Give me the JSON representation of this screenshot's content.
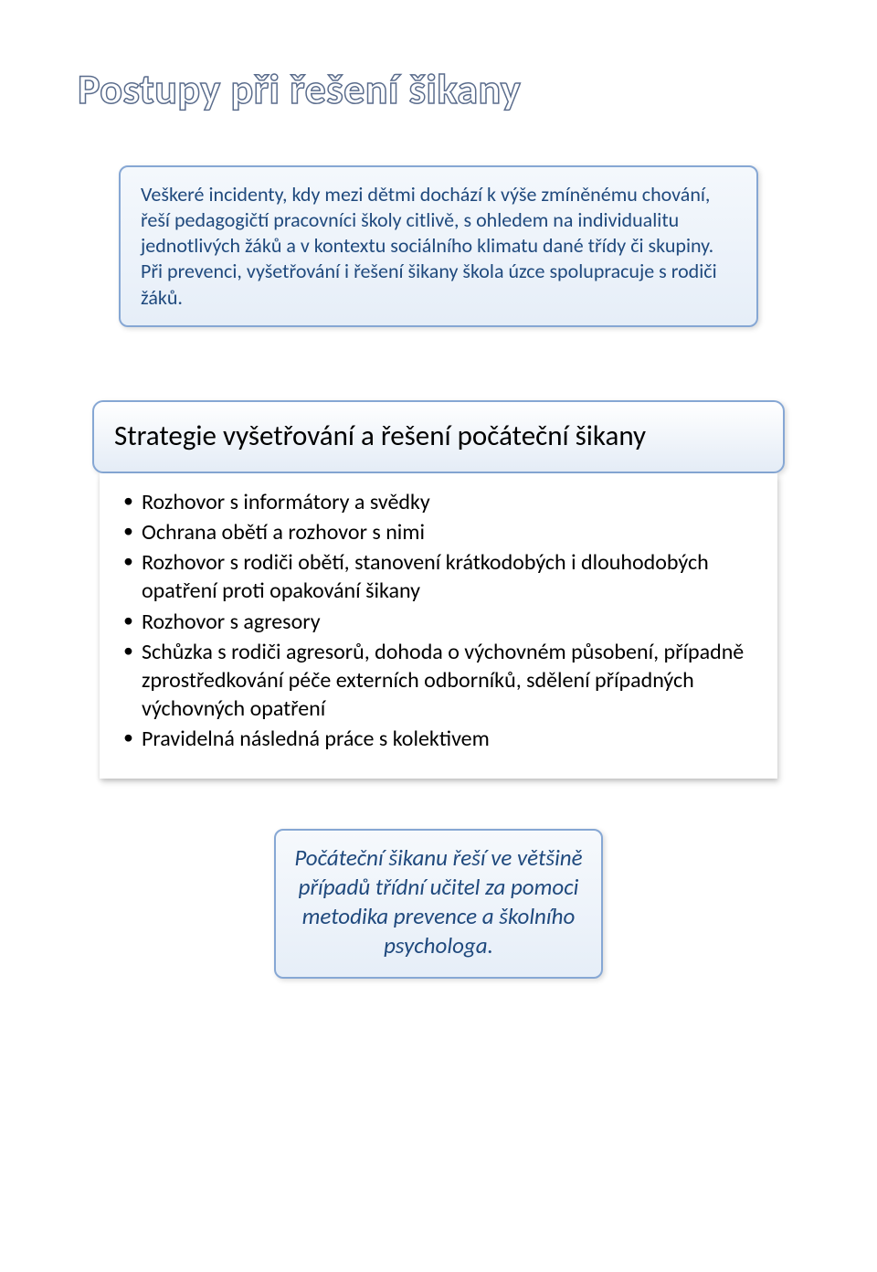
{
  "title": "Postupy při řešení šikany",
  "intro": {
    "paragraph1": "Veškeré incidenty, kdy mezi dětmi dochází k výše zmíněnému chování, řeší pedagogičtí pracovníci školy citlivě, s ohledem na individualitu jednotlivých žáků a v kontextu sociálního klimatu dané třídy či skupiny.",
    "paragraph2": "Při prevenci, vyšetřování i řešení šikany škola úzce spolupracuje s rodiči žáků."
  },
  "strategy": {
    "heading": "Strategie vyšetřování a řešení počáteční šikany",
    "items": [
      "Rozhovor s informátory a svědky",
      "Ochrana obětí a rozhovor s nimi",
      "Rozhovor s rodiči obětí, stanovení krátkodobých i dlouhodobých opatření proti opakování šikany",
      "Rozhovor s agresory",
      "Schůzka s rodiči agresorů, dohoda o výchovném působení, případně zprostředkování péče externích odborníků, sdělení případných výchovných opatření",
      "Pravidelná následná práce s kolektivem"
    ]
  },
  "footer": "Počáteční šikanu řeší ve většině případů třídní učitel za pomoci metodika prevence a školního psychologa.",
  "colors": {
    "title_outline": "#5a6c8c",
    "box_border": "#86a7d4",
    "box_text": "#1f497d",
    "body_text": "#000000",
    "background": "#ffffff",
    "box_bg_top": "#f6f9fc",
    "box_bg_bottom": "#e6eef8"
  },
  "fonts": {
    "title_size_pt": 34,
    "intro_size_pt": 16,
    "heading_size_pt": 23,
    "list_size_pt": 18,
    "footer_size_pt": 19
  }
}
